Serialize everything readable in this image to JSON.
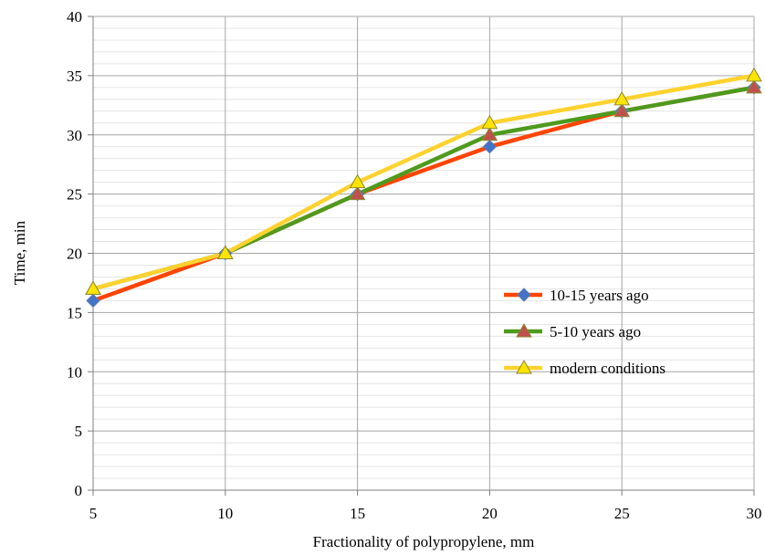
{
  "chart_data": {
    "type": "line",
    "title": "",
    "xlabel": "Fractionality of polypropylene, mm",
    "ylabel": "Time, min",
    "x": [
      5,
      10,
      15,
      20,
      25,
      30
    ],
    "xlim": [
      5,
      30
    ],
    "ylim": [
      0,
      40
    ],
    "x_ticks": [
      "5",
      "10",
      "15",
      "20",
      "25",
      "30"
    ],
    "y_ticks": [
      "0",
      "5",
      "10",
      "15",
      "20",
      "25",
      "30",
      "35",
      "40"
    ],
    "grid": "on (major + minor horizontal)",
    "legend_position": "right, lower-middle",
    "series": [
      {
        "name": "10-15  years ago",
        "values": [
          16,
          20,
          25,
          29,
          32,
          34
        ],
        "color": "#ff4400",
        "marker": "diamond",
        "marker_color": "#4472c4"
      },
      {
        "name": "5-10 years ago",
        "values": [
          17,
          20,
          25,
          30,
          32,
          34
        ],
        "color": "#4e9a1e",
        "marker": "triangle",
        "marker_color": "#c0504d"
      },
      {
        "name": "modern conditions",
        "values": [
          17,
          20,
          26,
          31,
          33,
          35
        ],
        "color": "#ffd22e",
        "marker": "triangle",
        "marker_color": "#ffe400"
      }
    ]
  }
}
